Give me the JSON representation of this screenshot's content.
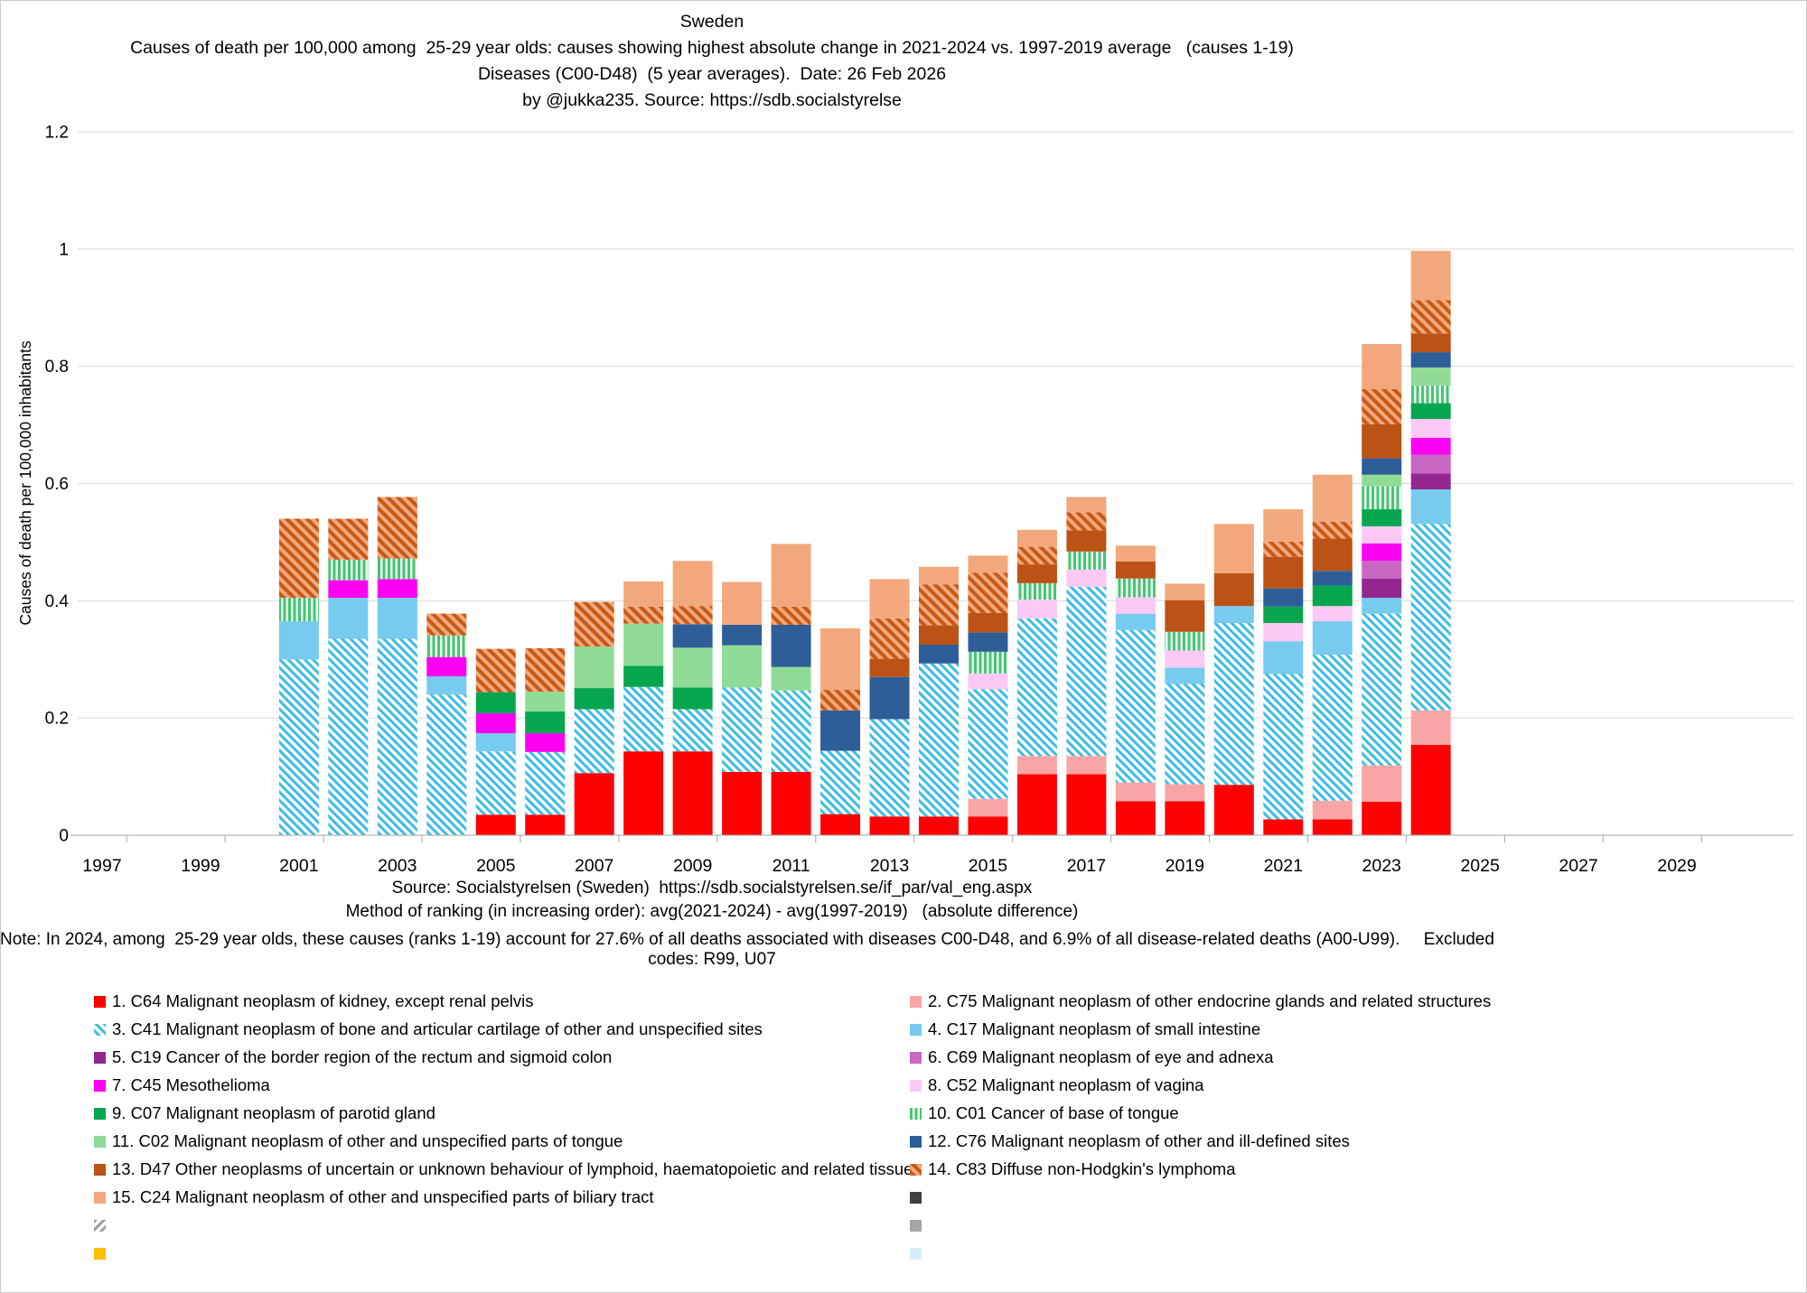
{
  "title": {
    "line1": "Sweden",
    "line2": "Causes of death per 100,000 among  25-29 year olds: causes showing highest absolute change in 2021-2024 vs. 1997-2019 average   (causes 1-19)",
    "line3": "Diseases (C00-D48)  (5 year averages).  Date: 26 Feb 2026",
    "line4": "by @jukka235. Source: https://sdb.socialstyrelse"
  },
  "footer": {
    "source": "Source: Socialstyrelsen (Sweden)  https://sdb.socialstyrelsen.se/if_par/val_eng.aspx",
    "method": "Method of ranking (in increasing order): avg(2021-2024) - avg(1997-2019)   (absolute difference)",
    "note_line1": "Note: In 2024, among  25-29 year olds, these causes (ranks 1-19) account for 27.6% of all deaths associated with diseases C00-D48, and 6.9% of all disease-related deaths (A00-U99).     Excluded",
    "note_line2": "codes: R99, U07"
  },
  "chart_data": {
    "type": "bar",
    "stacked": true,
    "title": "Sweden — Causes of death per 100,000 among 25-29 year olds (causes 1-19)",
    "ylabel": "Causes of death per 100,000 inhabitants",
    "ylim": [
      0,
      1.2
    ],
    "yticks": [
      0,
      0.2,
      0.4,
      0.6,
      0.8,
      1,
      1.2
    ],
    "xtick_years": [
      1997,
      1999,
      2001,
      2003,
      2005,
      2007,
      2009,
      2011,
      2013,
      2015,
      2017,
      2019,
      2021,
      2023,
      2025,
      2027,
      2029
    ],
    "grid": true,
    "years": [
      2001,
      2002,
      2003,
      2004,
      2005,
      2006,
      2007,
      2008,
      2009,
      2010,
      2011,
      2012,
      2013,
      2014,
      2015,
      2016,
      2017,
      2018,
      2019,
      2020,
      2021,
      2022,
      2023,
      2024
    ],
    "fills": {
      "c64": "solid:#FE0000",
      "c75": "solid:#FAA5A5",
      "c41": "pattern:patC41",
      "c17": "solid:#76CBEE",
      "c19": "solid:#93278F",
      "c69": "solid:#C868C2",
      "c45": "solid:#FB00F1",
      "c52": "solid:#FCC9F6",
      "c07": "solid:#06A64F",
      "c01": "pattern:patC01",
      "c02": "solid:#90DC96",
      "c76": "solid:#2E5E98",
      "d47": "solid:#BC5215",
      "c83": "pattern:patC83",
      "c24": "solid:#F2A87C",
      "darkgray": "solid:#3F3F3F",
      "grayhatch": "pattern:patGray",
      "gray": "solid:#A6A6A6",
      "gold": "solid:#FFC000",
      "lightblue": "solid:#D5EDF9"
    },
    "patterns": {
      "patC41": {
        "bg": "#FFFFFF",
        "fg": "#3ABCE5",
        "period": 6.5,
        "stripe": 3,
        "angle": -45
      },
      "patC83": {
        "bg": "#F2A87C",
        "fg": "#C75915",
        "period": 8,
        "stripe": 4,
        "angle": -45
      },
      "patC01": {
        "bg": "#EDF9F0",
        "fg": "#45C573",
        "period": 5.5,
        "stripe": 3,
        "angle": 0
      },
      "patGray": {
        "bg": "#FFFFFF",
        "fg": "#9E9E9E",
        "period": 6.5,
        "stripe": 3,
        "angle": 45
      }
    },
    "series": [
      {
        "rank": 1,
        "code": "C64",
        "name": "Malignant neoplasm of kidney, except renal pelvis",
        "fill": "c64",
        "values": [
          0,
          0,
          0,
          0,
          0.035,
          0.035,
          0.106,
          0.143,
          0.143,
          0.108,
          0.108,
          0.036,
          0.032,
          0.032,
          0.032,
          0.104,
          0.104,
          0.058,
          0.058,
          0.086,
          0.027,
          0.027,
          0.057,
          0.154
        ]
      },
      {
        "rank": 2,
        "code": "C75",
        "name": "Malignant neoplasm of other endocrine glands and related structures",
        "fill": "c75",
        "values": [
          0,
          0,
          0,
          0,
          0,
          0,
          0,
          0,
          0,
          0,
          0,
          0,
          0,
          0,
          0.03,
          0.031,
          0.031,
          0.032,
          0.029,
          0,
          0,
          0.032,
          0.062,
          0.059
        ]
      },
      {
        "rank": 3,
        "code": "C41",
        "name": "Malignant neoplasm of bone and articular cartilage of other and unspecified sites",
        "fill": "c41",
        "values": [
          0.3,
          0.335,
          0.335,
          0.24,
          0.108,
          0.107,
          0.109,
          0.11,
          0.072,
          0.144,
          0.139,
          0.108,
          0.166,
          0.261,
          0.187,
          0.235,
          0.289,
          0.26,
          0.171,
          0.276,
          0.248,
          0.249,
          0.259,
          0.318
        ]
      },
      {
        "rank": 4,
        "code": "C17",
        "name": "Malignant neoplasm of small intestine",
        "fill": "c17",
        "values": [
          0.065,
          0.07,
          0.07,
          0.031,
          0.031,
          0,
          0,
          0,
          0,
          0,
          0,
          0,
          0,
          0,
          0,
          0,
          0,
          0.028,
          0.028,
          0.029,
          0.056,
          0.057,
          0.027,
          0.059
        ]
      },
      {
        "rank": 5,
        "code": "C19",
        "name": "Cancer of the border region of the rectum and sigmoid colon",
        "fill": "c19",
        "values": [
          0,
          0,
          0,
          0,
          0,
          0,
          0,
          0,
          0,
          0,
          0,
          0,
          0,
          0,
          0,
          0,
          0,
          0,
          0,
          0,
          0,
          0,
          0.033,
          0.027
        ]
      },
      {
        "rank": 6,
        "code": "C69",
        "name": "Malignant neoplasm of eye and adnexa",
        "fill": "c69",
        "values": [
          0,
          0,
          0,
          0,
          0,
          0,
          0,
          0,
          0,
          0,
          0,
          0,
          0,
          0,
          0,
          0,
          0,
          0,
          0,
          0,
          0,
          0,
          0.03,
          0.032
        ]
      },
      {
        "rank": 7,
        "code": "C45",
        "name": "Mesothelioma",
        "fill": "c45",
        "values": [
          0,
          0.03,
          0.032,
          0.033,
          0.034,
          0.032,
          0,
          0,
          0,
          0,
          0,
          0,
          0,
          0,
          0,
          0,
          0,
          0,
          0,
          0,
          0,
          0,
          0.03,
          0.029
        ]
      },
      {
        "rank": 8,
        "code": "C52",
        "name": "Malignant neoplasm of vagina",
        "fill": "c52",
        "values": [
          0,
          0,
          0,
          0,
          0,
          0,
          0,
          0,
          0,
          0,
          0,
          0,
          0,
          0,
          0.027,
          0.032,
          0.029,
          0.028,
          0.029,
          0,
          0.031,
          0.026,
          0.029,
          0.032
        ]
      },
      {
        "rank": 9,
        "code": "C07",
        "name": "Malignant neoplasm of parotid gland",
        "fill": "c07",
        "values": [
          0,
          0,
          0,
          0,
          0.036,
          0.037,
          0.036,
          0.036,
          0.037,
          0,
          0,
          0,
          0,
          0,
          0,
          0,
          0,
          0,
          0,
          0,
          0.028,
          0.035,
          0.029,
          0.027
        ]
      },
      {
        "rank": 10,
        "code": "C01",
        "name": "Cancer of base of tongue",
        "fill": "c01",
        "values": [
          0.04,
          0.035,
          0.035,
          0.037,
          0,
          0,
          0,
          0,
          0,
          0,
          0,
          0,
          0,
          0,
          0.037,
          0.028,
          0.031,
          0.032,
          0.032,
          0,
          0,
          0,
          0.039,
          0.03
        ]
      },
      {
        "rank": 11,
        "code": "C02",
        "name": "Malignant neoplasm of other and unspecified parts of tongue",
        "fill": "c02",
        "values": [
          0,
          0,
          0,
          0,
          0,
          0.034,
          0.071,
          0.072,
          0.068,
          0.072,
          0.04,
          0,
          0,
          0,
          0,
          0,
          0,
          0,
          0,
          0,
          0,
          0,
          0.02,
          0.031
        ]
      },
      {
        "rank": 12,
        "code": "C76",
        "name": "Malignant neoplasm of other and ill-defined sites",
        "fill": "c76",
        "values": [
          0,
          0,
          0,
          0,
          0,
          0,
          0,
          0,
          0.04,
          0.035,
          0.072,
          0.069,
          0.072,
          0.032,
          0.033,
          0,
          0,
          0,
          0,
          0,
          0.031,
          0.025,
          0.028,
          0.026
        ]
      },
      {
        "rank": 13,
        "code": "D47",
        "name": "Other neoplasms of uncertain or unknown behaviour of lymphoid, haematopoietic and related tissue",
        "fill": "d47",
        "values": [
          0,
          0,
          0,
          0,
          0,
          0,
          0,
          0,
          0,
          0,
          0,
          0,
          0.031,
          0.033,
          0.033,
          0.032,
          0.036,
          0.029,
          0.054,
          0.056,
          0.054,
          0.055,
          0.058,
          0.032
        ]
      },
      {
        "rank": 14,
        "code": "C83",
        "name": "Diffuse non-Hodgkin's lymphoma",
        "fill": "c83",
        "values": [
          0.135,
          0.07,
          0.105,
          0.037,
          0.074,
          0.074,
          0.076,
          0.029,
          0.031,
          0,
          0.031,
          0.035,
          0.069,
          0.07,
          0.069,
          0.03,
          0.031,
          0,
          0,
          0,
          0.026,
          0.029,
          0.06,
          0.057
        ]
      },
      {
        "rank": 15,
        "code": "C24",
        "name": "Malignant neoplasm of other and unspecified parts of biliary tract",
        "fill": "c24",
        "values": [
          0,
          0,
          0,
          0,
          0,
          0,
          0,
          0.043,
          0.077,
          0.073,
          0.107,
          0.105,
          0.067,
          0.03,
          0.029,
          0.029,
          0.026,
          0.027,
          0.028,
          0.084,
          0.055,
          0.08,
          0.077,
          0.084
        ]
      }
    ]
  },
  "legend": {
    "left": [
      {
        "label": "1. C64 Malignant neoplasm of kidney, except renal pelvis",
        "fill": "c64"
      },
      {
        "label": "3. C41 Malignant neoplasm of bone and articular cartilage of other and unspecified sites",
        "fill": "c41"
      },
      {
        "label": "5. C19 Cancer of the border region of the rectum and sigmoid colon",
        "fill": "c19"
      },
      {
        "label": "7. C45 Mesothelioma",
        "fill": "c45"
      },
      {
        "label": "9. C07 Malignant neoplasm of parotid gland",
        "fill": "c07"
      },
      {
        "label": "11. C02 Malignant neoplasm of other and unspecified parts of tongue",
        "fill": "c02"
      },
      {
        "label": "13. D47 Other neoplasms of uncertain or unknown behaviour of lymphoid, haematopoietic and related tissue",
        "fill": "d47"
      },
      {
        "label": "15. C24 Malignant neoplasm of other and unspecified parts of biliary tract",
        "fill": "c24"
      },
      {
        "label": "",
        "fill": "grayhatch"
      },
      {
        "label": "",
        "fill": "gold"
      }
    ],
    "right": [
      {
        "label": "2. C75 Malignant neoplasm of other endocrine glands and related structures",
        "fill": "c75"
      },
      {
        "label": "4. C17 Malignant neoplasm of small intestine",
        "fill": "c17"
      },
      {
        "label": "6. C69 Malignant neoplasm of eye and adnexa",
        "fill": "c69"
      },
      {
        "label": "8. C52 Malignant neoplasm of vagina",
        "fill": "c52"
      },
      {
        "label": "10. C01 Cancer of base of tongue",
        "fill": "c01"
      },
      {
        "label": "12. C76 Malignant neoplasm of other and ill-defined sites",
        "fill": "c76"
      },
      {
        "label": "14. C83 Diffuse non-Hodgkin's lymphoma",
        "fill": "c83"
      },
      {
        "label": "",
        "fill": "darkgray"
      },
      {
        "label": "",
        "fill": "gray"
      },
      {
        "label": "",
        "fill": "lightblue"
      }
    ]
  }
}
